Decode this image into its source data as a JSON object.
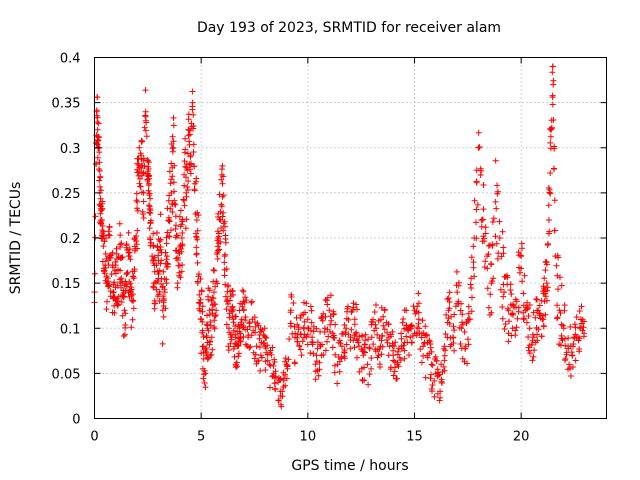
{
  "chart_data": {
    "type": "scatter",
    "title": "Day 193 of 2023, SRMTID for receiver alam",
    "xlabel": "GPS time / hours",
    "ylabel": "SRMTID / TECUs",
    "xlim": [
      0,
      24
    ],
    "ylim": [
      0,
      0.4
    ],
    "x_ticks": [
      0,
      5,
      10,
      15,
      20
    ],
    "x_tick_labels": [
      "0",
      "5",
      "10",
      "15",
      "20"
    ],
    "y_ticks": [
      0,
      0.05,
      0.1,
      0.15,
      0.2,
      0.25,
      0.3,
      0.35,
      0.4
    ],
    "y_tick_labels": [
      "0",
      "0.05",
      "0.1",
      "0.15",
      "0.2",
      "0.25",
      "0.3",
      "0.35",
      "0.4"
    ],
    "grid": true,
    "marker": "plus",
    "series": [
      {
        "name": "SRMTID",
        "color": "#ff0000",
        "x": [
          0.0,
          0.1,
          0.15,
          0.2,
          0.25,
          0.3,
          0.35,
          0.4,
          0.5,
          0.6,
          0.7,
          0.8,
          0.9,
          1.0,
          1.1,
          1.2,
          1.3,
          1.4,
          1.5,
          1.6,
          1.7,
          1.8,
          1.9,
          2.0,
          2.1,
          2.2,
          2.3,
          2.4,
          2.5,
          2.55,
          2.6,
          2.7,
          2.8,
          2.9,
          3.0,
          3.1,
          3.2,
          3.3,
          3.4,
          3.5,
          3.6,
          3.7,
          3.8,
          3.9,
          4.0,
          4.1,
          4.2,
          4.3,
          4.4,
          4.5,
          4.6,
          4.7,
          4.8,
          4.9,
          5.0,
          5.1,
          5.2,
          5.3,
          5.4,
          5.5,
          5.6,
          5.7,
          5.8,
          5.9,
          6.0,
          6.1,
          6.2,
          6.3,
          6.4,
          6.5,
          6.6,
          6.7,
          6.8,
          6.9,
          7.0,
          7.2,
          7.4,
          7.6,
          7.8,
          8.0,
          8.2,
          8.4,
          8.6,
          8.8,
          9.0,
          9.2,
          9.4,
          9.6,
          9.8,
          10.0,
          10.2,
          10.4,
          10.6,
          10.8,
          11.0,
          11.2,
          11.4,
          11.6,
          11.8,
          12.0,
          12.2,
          12.4,
          12.6,
          12.8,
          13.0,
          13.2,
          13.4,
          13.6,
          13.8,
          14.0,
          14.2,
          14.4,
          14.6,
          14.8,
          15.0,
          15.2,
          15.4,
          15.6,
          15.8,
          16.0,
          16.2,
          16.4,
          16.6,
          16.8,
          17.0,
          17.2,
          17.4,
          17.6,
          17.8,
          18.0,
          18.2,
          18.4,
          18.6,
          18.8,
          19.0,
          19.2,
          19.4,
          19.6,
          19.8,
          20.0,
          20.2,
          20.4,
          20.6,
          20.8,
          21.0,
          21.1,
          21.2,
          21.3,
          21.4,
          21.5,
          21.6,
          21.8,
          22.0,
          22.2,
          22.4,
          22.6,
          22.8
        ],
        "y": [
          0.14,
          0.34,
          0.32,
          0.3,
          0.25,
          0.235,
          0.22,
          0.2,
          0.17,
          0.15,
          0.18,
          0.16,
          0.14,
          0.17,
          0.13,
          0.19,
          0.15,
          0.12,
          0.16,
          0.18,
          0.14,
          0.13,
          0.2,
          0.24,
          0.3,
          0.28,
          0.25,
          0.34,
          0.27,
          0.26,
          0.2,
          0.18,
          0.15,
          0.17,
          0.16,
          0.19,
          0.12,
          0.14,
          0.18,
          0.22,
          0.25,
          0.3,
          0.21,
          0.15,
          0.19,
          0.2,
          0.27,
          0.25,
          0.32,
          0.29,
          0.35,
          0.26,
          0.22,
          0.16,
          0.11,
          0.08,
          0.05,
          0.1,
          0.12,
          0.09,
          0.14,
          0.12,
          0.2,
          0.22,
          0.26,
          0.18,
          0.13,
          0.1,
          0.12,
          0.11,
          0.09,
          0.08,
          0.1,
          0.11,
          0.12,
          0.09,
          0.11,
          0.08,
          0.07,
          0.08,
          0.06,
          0.05,
          0.04,
          0.03,
          0.06,
          0.12,
          0.09,
          0.08,
          0.1,
          0.11,
          0.09,
          0.07,
          0.08,
          0.1,
          0.12,
          0.09,
          0.06,
          0.08,
          0.1,
          0.09,
          0.11,
          0.08,
          0.07,
          0.06,
          0.09,
          0.1,
          0.08,
          0.12,
          0.09,
          0.07,
          0.06,
          0.08,
          0.1,
          0.09,
          0.12,
          0.11,
          0.08,
          0.07,
          0.06,
          0.05,
          0.03,
          0.08,
          0.12,
          0.09,
          0.14,
          0.1,
          0.08,
          0.11,
          0.2,
          0.3,
          0.22,
          0.18,
          0.15,
          0.24,
          0.2,
          0.14,
          0.12,
          0.1,
          0.13,
          0.18,
          0.12,
          0.1,
          0.09,
          0.12,
          0.11,
          0.13,
          0.15,
          0.22,
          0.32,
          0.37,
          0.18,
          0.12,
          0.1,
          0.08,
          0.07,
          0.09,
          0.11
        ],
        "spread": [
          0.02,
          0.03,
          0.03,
          0.03,
          0.03,
          0.03,
          0.03,
          0.03,
          0.04,
          0.04,
          0.04,
          0.04,
          0.04,
          0.04,
          0.04,
          0.04,
          0.04,
          0.04,
          0.04,
          0.04,
          0.04,
          0.04,
          0.05,
          0.05,
          0.04,
          0.04,
          0.04,
          0.02,
          0.03,
          0.03,
          0.05,
          0.05,
          0.04,
          0.04,
          0.05,
          0.05,
          0.04,
          0.04,
          0.05,
          0.05,
          0.05,
          0.04,
          0.05,
          0.05,
          0.05,
          0.05,
          0.05,
          0.05,
          0.03,
          0.03,
          0.02,
          0.05,
          0.05,
          0.05,
          0.04,
          0.04,
          0.03,
          0.04,
          0.04,
          0.04,
          0.04,
          0.04,
          0.05,
          0.04,
          0.04,
          0.05,
          0.04,
          0.03,
          0.03,
          0.03,
          0.03,
          0.03,
          0.03,
          0.03,
          0.03,
          0.03,
          0.03,
          0.03,
          0.03,
          0.03,
          0.03,
          0.02,
          0.02,
          0.02,
          0.03,
          0.03,
          0.03,
          0.03,
          0.03,
          0.03,
          0.03,
          0.03,
          0.03,
          0.03,
          0.03,
          0.03,
          0.02,
          0.03,
          0.03,
          0.03,
          0.03,
          0.03,
          0.03,
          0.03,
          0.03,
          0.03,
          0.03,
          0.03,
          0.03,
          0.03,
          0.02,
          0.03,
          0.03,
          0.03,
          0.03,
          0.03,
          0.03,
          0.03,
          0.03,
          0.02,
          0.02,
          0.03,
          0.03,
          0.03,
          0.03,
          0.03,
          0.03,
          0.04,
          0.05,
          0.03,
          0.05,
          0.05,
          0.05,
          0.05,
          0.05,
          0.04,
          0.04,
          0.03,
          0.04,
          0.04,
          0.03,
          0.03,
          0.03,
          0.03,
          0.03,
          0.04,
          0.04,
          0.05,
          0.04,
          0.03,
          0.05,
          0.04,
          0.03,
          0.03,
          0.03,
          0.03,
          0.02
        ]
      }
    ]
  }
}
